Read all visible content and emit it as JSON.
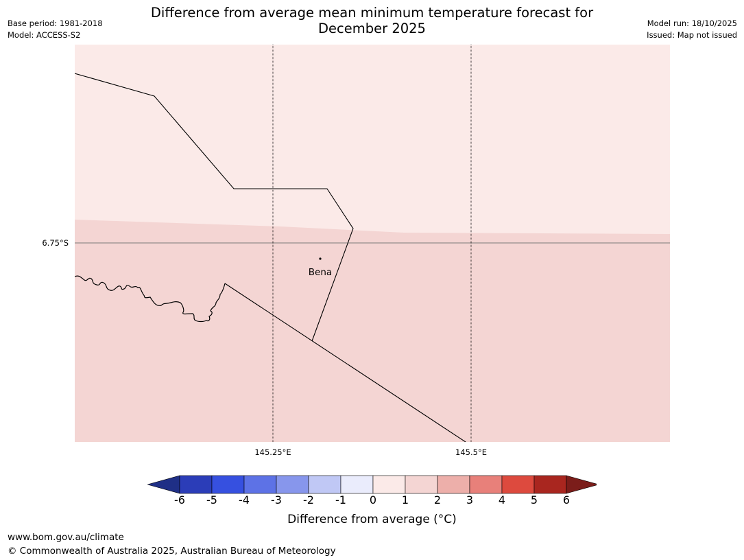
{
  "title": {
    "line1": "Difference from average mean minimum temperature forecast for",
    "line2": "December 2025"
  },
  "meta": {
    "base_period": "Base period: 1981-2018",
    "model": "Model: ACCESS-S2",
    "model_run": "Model run: 18/10/2025",
    "issued": "Issued: Map not issued"
  },
  "map": {
    "grid_labels": {
      "lat": "6.75°S",
      "lon1": "145.25°E",
      "lon2": "145.5°E"
    },
    "place": "Bena",
    "region_colors": {
      "zero_to_one": "#fbeae8",
      "one_to_two": "#f4d5d3"
    }
  },
  "legend": {
    "ticks": [
      "-6",
      "-5",
      "-4",
      "-3",
      "-2",
      "-1",
      "0",
      "1",
      "2",
      "3",
      "4",
      "5",
      "6"
    ],
    "colors": [
      "#1f2f86",
      "#2b3db8",
      "#3650e0",
      "#5d72e6",
      "#8796ec",
      "#c0c8f5",
      "#eaecfc",
      "#fbeae8",
      "#f4d5d3",
      "#edafaa",
      "#e8807a",
      "#dd4a3e",
      "#a9261f",
      "#7b1d1a"
    ],
    "label": "Difference from average (°C)"
  },
  "footer": {
    "url": "www.bom.gov.au/climate",
    "copyright": "© Commonwealth of Australia 2025, Australian Bureau of Meteorology"
  }
}
